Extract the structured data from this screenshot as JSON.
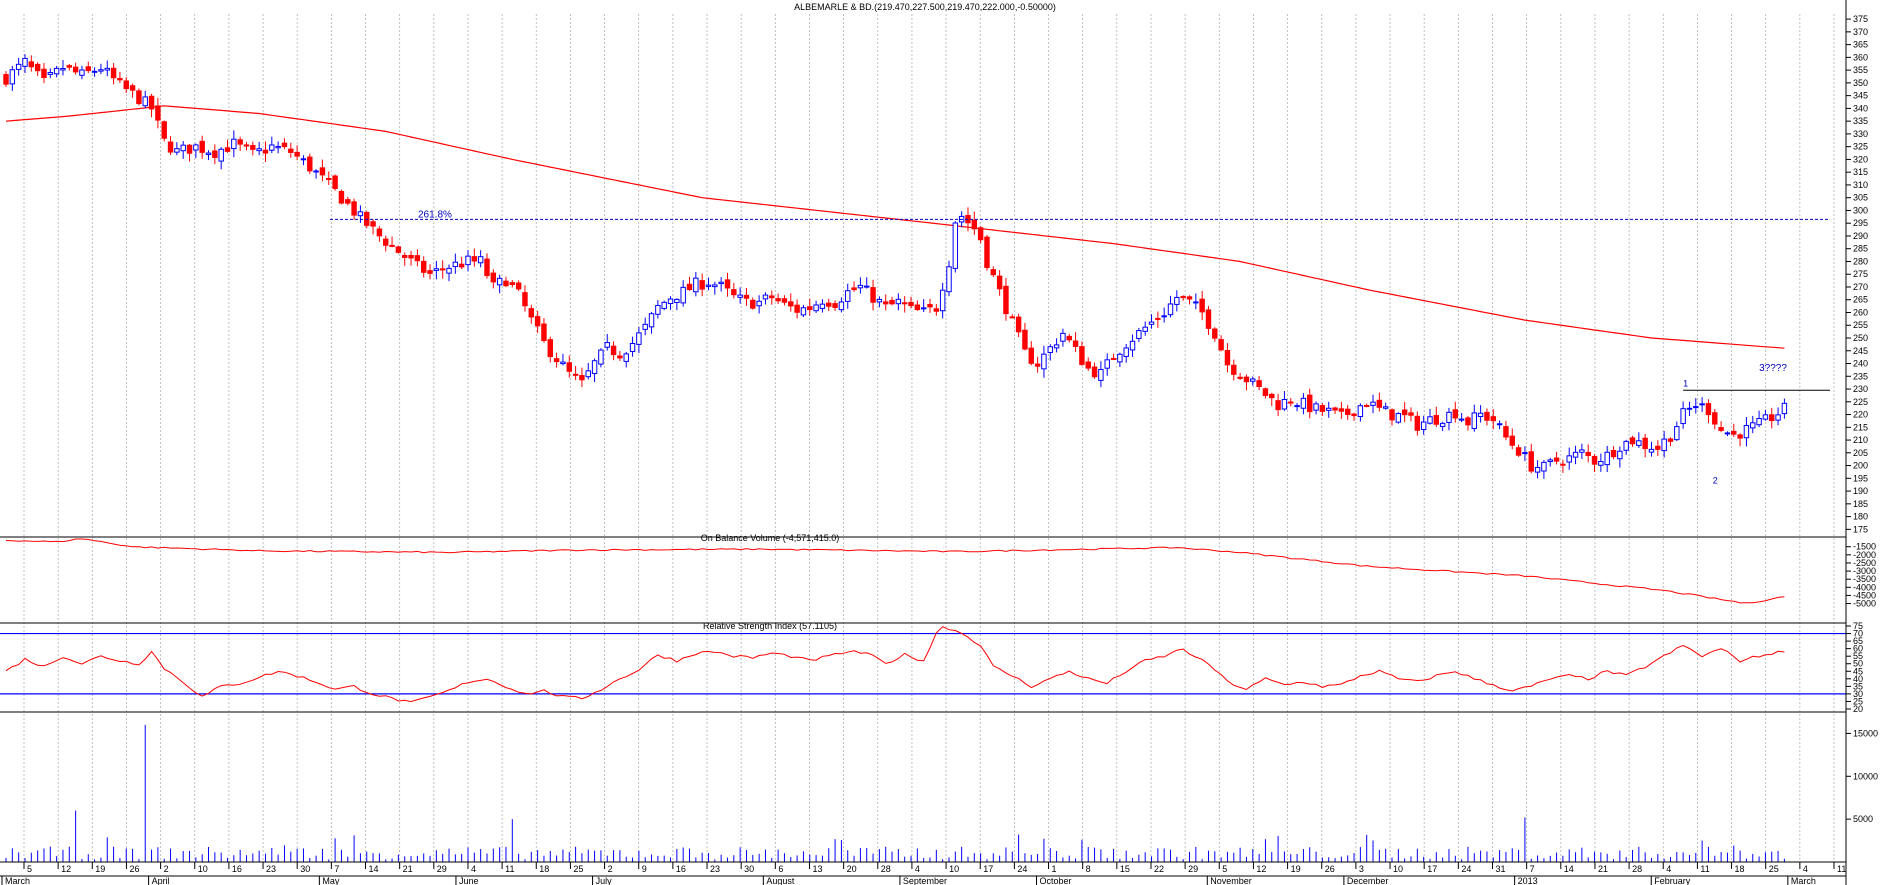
{
  "colors": {
    "up_candle": "#0000ff",
    "down_candle": "#ff0000",
    "moving_average": "#ff0000",
    "indicator_line": "#ff0000",
    "rsi_bands": "#0000ff",
    "annotation": "#0000c0",
    "grid": "#b0b0b0",
    "text": "#000000"
  },
  "chart_data": [
    {
      "type": "candlestick",
      "title": "ALBEMARLE & BD.(219.470,227.500,219.470,222.000,-0.50000)",
      "y_axis": {
        "ylim": [
          172,
          377
        ],
        "tick_labels": [
          "175",
          "180",
          "185",
          "190",
          "195",
          "200",
          "205",
          "210",
          "215",
          "220",
          "225",
          "230",
          "235",
          "240",
          "245",
          "250",
          "255",
          "260",
          "265",
          "270",
          "275",
          "280",
          "285",
          "290",
          "295",
          "300",
          "305",
          "310",
          "315",
          "320",
          "325",
          "330",
          "335",
          "340",
          "345",
          "350",
          "355",
          "360",
          "365",
          "370",
          "375"
        ]
      },
      "x_axis": {
        "month_labels": [
          "March",
          "April",
          "May",
          "June",
          "July",
          "August",
          "September",
          "October",
          "November",
          "December",
          "2013",
          "February",
          "March"
        ],
        "day_labels": [
          "5",
          "12",
          "19",
          "26",
          "2",
          "10",
          "16",
          "23",
          "30",
          "7",
          "14",
          "21",
          "29",
          "4",
          "11",
          "18",
          "25",
          "2",
          "9",
          "16",
          "23",
          "30",
          "6",
          "13",
          "20",
          "28",
          "4",
          "10",
          "17",
          "24",
          "1",
          "8",
          "15",
          "22",
          "29",
          "5",
          "12",
          "19",
          "26",
          "3",
          "10",
          "17",
          "24",
          "31",
          "7",
          "14",
          "21",
          "28",
          "4",
          "11",
          "18",
          "25",
          "4",
          "11"
        ]
      },
      "annotations": {
        "fib_level_label": "261.8%",
        "fib_level_value": 296.5,
        "resistance_value": 229.5,
        "wave_label_1": "1",
        "wave_label_2": "2",
        "question_label": "3????"
      },
      "close_anchors": [
        [
          0,
          352
        ],
        [
          3,
          358
        ],
        [
          6,
          350
        ],
        [
          9,
          356
        ],
        [
          12,
          353
        ],
        [
          15,
          356
        ],
        [
          18,
          349
        ],
        [
          21,
          344
        ],
        [
          23,
          340
        ],
        [
          25,
          327
        ],
        [
          27,
          323
        ],
        [
          30,
          325
        ],
        [
          33,
          323
        ],
        [
          36,
          326
        ],
        [
          39,
          322
        ],
        [
          42,
          325
        ],
        [
          45,
          323
        ],
        [
          48,
          317
        ],
        [
          51,
          310
        ],
        [
          53,
          305
        ],
        [
          56,
          297
        ],
        [
          59,
          290
        ],
        [
          62,
          284
        ],
        [
          65,
          278
        ],
        [
          67,
          275
        ],
        [
          70,
          278
        ],
        [
          73,
          280
        ],
        [
          75,
          280
        ],
        [
          77,
          270
        ],
        [
          79,
          273
        ],
        [
          81,
          267
        ],
        [
          83,
          257
        ],
        [
          85,
          248
        ],
        [
          87,
          242
        ],
        [
          89,
          236
        ],
        [
          91,
          232
        ],
        [
          93,
          240
        ],
        [
          95,
          246
        ],
        [
          97,
          244
        ],
        [
          99,
          248
        ],
        [
          101,
          254
        ],
        [
          103,
          262
        ],
        [
          105,
          266
        ],
        [
          107,
          268
        ],
        [
          109,
          271
        ],
        [
          111,
          272
        ],
        [
          113,
          270
        ],
        [
          115,
          266
        ],
        [
          117,
          264
        ],
        [
          119,
          264
        ],
        [
          121,
          266
        ],
        [
          123,
          263
        ],
        [
          125,
          261
        ],
        [
          127,
          262
        ],
        [
          129,
          265
        ],
        [
          131,
          264
        ],
        [
          133,
          268
        ],
        [
          135,
          270
        ],
        [
          137,
          266
        ],
        [
          139,
          262
        ],
        [
          141,
          264
        ],
        [
          143,
          261
        ],
        [
          145,
          260
        ],
        [
          147,
          262
        ],
        [
          149,
          280
        ],
        [
          150,
          296
        ],
        [
          151,
          298
        ],
        [
          153,
          293
        ],
        [
          154,
          289
        ],
        [
          155,
          280
        ],
        [
          157,
          268
        ],
        [
          159,
          256
        ],
        [
          161,
          244
        ],
        [
          163,
          240
        ],
        [
          165,
          246
        ],
        [
          167,
          252
        ],
        [
          169,
          245
        ],
        [
          171,
          238
        ],
        [
          173,
          236
        ],
        [
          175,
          243
        ],
        [
          177,
          248
        ],
        [
          179,
          252
        ],
        [
          181,
          256
        ],
        [
          183,
          260
        ],
        [
          185,
          266
        ],
        [
          187,
          264
        ],
        [
          189,
          260
        ],
        [
          191,
          252
        ],
        [
          193,
          240
        ],
        [
          195,
          236
        ],
        [
          197,
          232
        ],
        [
          199,
          228
        ],
        [
          201,
          224
        ],
        [
          203,
          226
        ],
        [
          205,
          224
        ],
        [
          207,
          222
        ],
        [
          209,
          221
        ],
        [
          211,
          219
        ],
        [
          213,
          222
        ],
        [
          215,
          225
        ],
        [
          217,
          222
        ],
        [
          219,
          220
        ],
        [
          221,
          219
        ],
        [
          223,
          216
        ],
        [
          225,
          218
        ],
        [
          227,
          219
        ],
        [
          229,
          221
        ],
        [
          231,
          217
        ],
        [
          233,
          220
        ],
        [
          235,
          218
        ],
        [
          237,
          211
        ],
        [
          239,
          206
        ],
        [
          241,
          200
        ],
        [
          243,
          199
        ],
        [
          245,
          202
        ],
        [
          247,
          203
        ],
        [
          249,
          205
        ],
        [
          251,
          202
        ],
        [
          253,
          204
        ],
        [
          255,
          208
        ],
        [
          257,
          210
        ],
        [
          259,
          208
        ],
        [
          261,
          207
        ],
        [
          263,
          212
        ],
        [
          265,
          220
        ],
        [
          267,
          224
        ],
        [
          269,
          222
        ],
        [
          271,
          214
        ],
        [
          273,
          212
        ],
        [
          275,
          214
        ],
        [
          277,
          216
        ],
        [
          279,
          219
        ],
        [
          281,
          222
        ]
      ],
      "moving_average_anchors": [
        [
          0,
          335
        ],
        [
          10,
          337
        ],
        [
          25,
          341
        ],
        [
          40,
          338
        ],
        [
          60,
          331
        ],
        [
          80,
          320
        ],
        [
          110,
          305
        ],
        [
          150,
          294
        ],
        [
          175,
          287
        ],
        [
          195,
          280
        ],
        [
          215,
          269
        ],
        [
          240,
          257
        ],
        [
          260,
          250
        ],
        [
          281,
          246
        ]
      ],
      "volume_bar_anchors": [
        [
          11,
          6000
        ],
        [
          22,
          16000
        ],
        [
          80,
          5000
        ],
        [
          160,
          3200
        ],
        [
          240,
          5200
        ]
      ]
    },
    {
      "type": "line",
      "title": "On Balance Volume (-4,571,415.0)",
      "y_axis": {
        "ylim": [
          -6200,
          -900
        ],
        "tick_labels": [
          "-1500",
          "-2000",
          "-2500",
          "-3000",
          "-3500",
          "-4000",
          "-4500",
          "-5000"
        ]
      },
      "anchors": [
        [
          0,
          -1100
        ],
        [
          8,
          -1200
        ],
        [
          12,
          -1000
        ],
        [
          20,
          -1500
        ],
        [
          40,
          -1750
        ],
        [
          70,
          -1850
        ],
        [
          90,
          -1700
        ],
        [
          120,
          -1650
        ],
        [
          150,
          -1800
        ],
        [
          185,
          -1550
        ],
        [
          195,
          -1850
        ],
        [
          215,
          -2700
        ],
        [
          240,
          -3300
        ],
        [
          262,
          -4200
        ],
        [
          275,
          -5000
        ],
        [
          281,
          -4571
        ]
      ]
    },
    {
      "type": "line",
      "title": "Relative Strength Index (57.1105)",
      "y_axis": {
        "ylim": [
          18,
          77
        ],
        "tick_labels": [
          "20",
          "25",
          "30",
          "35",
          "40",
          "45",
          "50",
          "55",
          "60",
          "65",
          "70",
          "75"
        ],
        "bands": [
          30,
          70
        ]
      },
      "anchors": [
        [
          0,
          45
        ],
        [
          3,
          53
        ],
        [
          6,
          48
        ],
        [
          9,
          55
        ],
        [
          12,
          50
        ],
        [
          15,
          55
        ],
        [
          18,
          52
        ],
        [
          21,
          50
        ],
        [
          23,
          58
        ],
        [
          25,
          47
        ],
        [
          28,
          38
        ],
        [
          31,
          28
        ],
        [
          34,
          35
        ],
        [
          37,
          37
        ],
        [
          40,
          41
        ],
        [
          43,
          45
        ],
        [
          46,
          42
        ],
        [
          49,
          38
        ],
        [
          52,
          33
        ],
        [
          55,
          35
        ],
        [
          58,
          30
        ],
        [
          61,
          27
        ],
        [
          64,
          24
        ],
        [
          67,
          28
        ],
        [
          70,
          32
        ],
        [
          73,
          38
        ],
        [
          76,
          40
        ],
        [
          79,
          35
        ],
        [
          82,
          30
        ],
        [
          85,
          32
        ],
        [
          88,
          28
        ],
        [
          91,
          27
        ],
        [
          94,
          33
        ],
        [
          97,
          40
        ],
        [
          100,
          46
        ],
        [
          103,
          56
        ],
        [
          106,
          52
        ],
        [
          109,
          57
        ],
        [
          112,
          58
        ],
        [
          115,
          55
        ],
        [
          118,
          54
        ],
        [
          121,
          57
        ],
        [
          124,
          55
        ],
        [
          127,
          52
        ],
        [
          130,
          55
        ],
        [
          133,
          58
        ],
        [
          136,
          57
        ],
        [
          139,
          50
        ],
        [
          142,
          56
        ],
        [
          145,
          52
        ],
        [
          147,
          70
        ],
        [
          148,
          75
        ],
        [
          150,
          72
        ],
        [
          152,
          68
        ],
        [
          154,
          62
        ],
        [
          156,
          48
        ],
        [
          159,
          42
        ],
        [
          162,
          35
        ],
        [
          165,
          40
        ],
        [
          168,
          45
        ],
        [
          171,
          40
        ],
        [
          174,
          37
        ],
        [
          177,
          45
        ],
        [
          180,
          52
        ],
        [
          183,
          55
        ],
        [
          186,
          60
        ],
        [
          188,
          54
        ],
        [
          190,
          50
        ],
        [
          193,
          38
        ],
        [
          196,
          33
        ],
        [
          199,
          40
        ],
        [
          202,
          36
        ],
        [
          205,
          38
        ],
        [
          208,
          35
        ],
        [
          211,
          36
        ],
        [
          214,
          42
        ],
        [
          217,
          45
        ],
        [
          220,
          40
        ],
        [
          223,
          38
        ],
        [
          226,
          42
        ],
        [
          229,
          45
        ],
        [
          232,
          40
        ],
        [
          235,
          36
        ],
        [
          238,
          32
        ],
        [
          241,
          35
        ],
        [
          244,
          40
        ],
        [
          247,
          42
        ],
        [
          250,
          40
        ],
        [
          253,
          45
        ],
        [
          256,
          42
        ],
        [
          259,
          48
        ],
        [
          262,
          55
        ],
        [
          265,
          62
        ],
        [
          268,
          55
        ],
        [
          271,
          60
        ],
        [
          274,
          52
        ],
        [
          277,
          55
        ],
        [
          280,
          58
        ],
        [
          281,
          57
        ]
      ]
    },
    {
      "type": "bar",
      "title": "",
      "y_axis": {
        "ylim": [
          0,
          17500
        ],
        "tick_labels": [
          "5000",
          "10000",
          "15000"
        ]
      }
    }
  ]
}
